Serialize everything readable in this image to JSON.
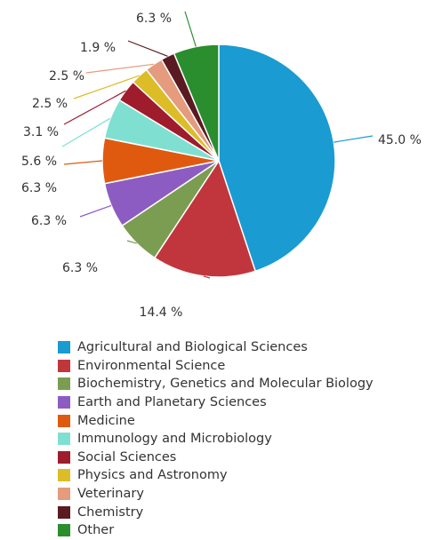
{
  "chart_data": {
    "type": "pie",
    "title": "",
    "series": [
      {
        "name": "Agricultural and Biological Sciences",
        "value": 45.0,
        "label": "45.0 %",
        "color": "#1a9bd1"
      },
      {
        "name": "Environmental Science",
        "value": 14.4,
        "label": "14.4 %",
        "color": "#c1363c"
      },
      {
        "name": "Biochemistry, Genetics and Molecular Biology",
        "value": 6.3,
        "label": "6.3 %",
        "color": "#7a9d52"
      },
      {
        "name": "Earth and Planetary Sciences",
        "value": 6.3,
        "label": "6.3 %",
        "color": "#8d5cc2"
      },
      {
        "name": "Medicine",
        "value": 6.3,
        "label": "6.3 %",
        "color": "#df5a0f"
      },
      {
        "name": "Immunology and Microbiology",
        "value": 5.6,
        "label": "5.6 %",
        "color": "#7fe0d1"
      },
      {
        "name": "Social Sciences",
        "value": 3.1,
        "label": "3.1 %",
        "color": "#9e1c2c"
      },
      {
        "name": "Physics and Astronomy",
        "value": 2.5,
        "label": "2.5 %",
        "color": "#dcbd28"
      },
      {
        "name": "Veterinary",
        "value": 2.5,
        "label": "2.5 %",
        "color": "#e59b7d"
      },
      {
        "name": "Chemistry",
        "value": 1.9,
        "label": "1.9 %",
        "color": "#5a1a22"
      },
      {
        "name": "Other",
        "value": 6.3,
        "label": "6.3 %",
        "color": "#2a8d2e"
      }
    ],
    "legend_position": "bottom-left"
  }
}
